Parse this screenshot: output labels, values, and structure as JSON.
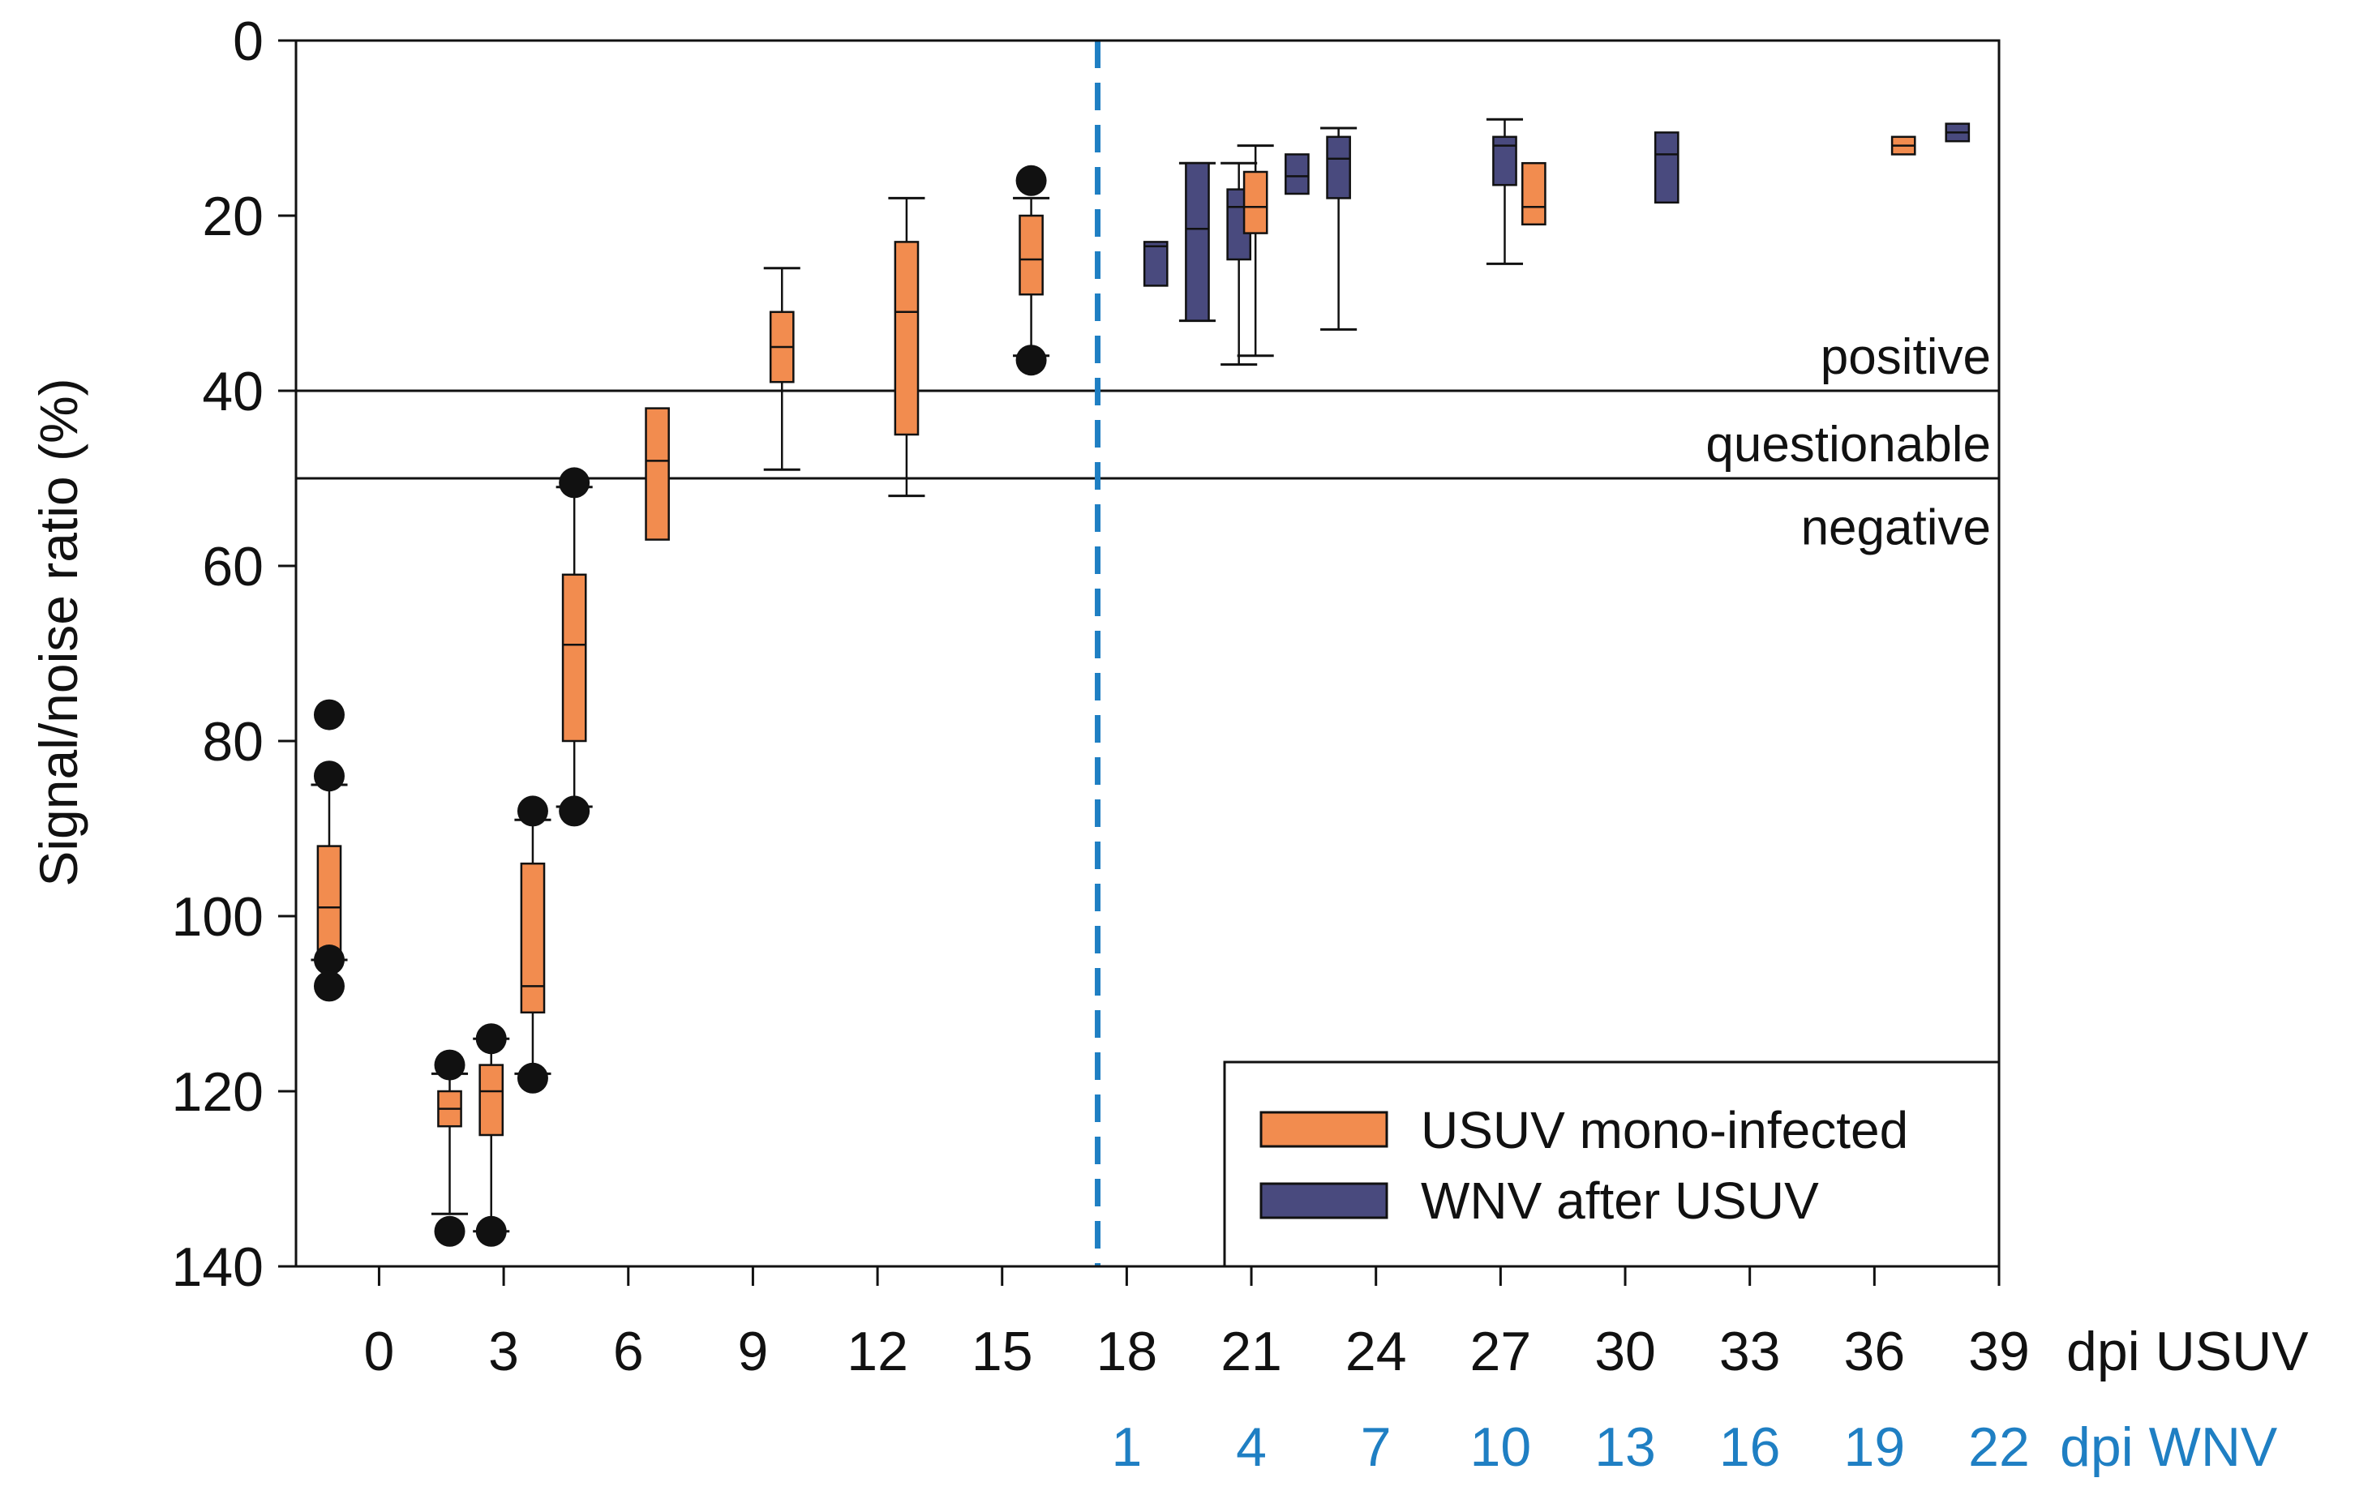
{
  "chart_data": {
    "type": "box",
    "title": "",
    "ylabel": "Signal/noise ratio (%)",
    "ylim": [
      0,
      140
    ],
    "y_inverted": true,
    "y_ticks": [
      0,
      20,
      40,
      60,
      80,
      100,
      120,
      140
    ],
    "xlim": [
      -2,
      39
    ],
    "x_ticks": [
      0,
      3,
      6,
      9,
      12,
      15,
      18,
      21,
      24,
      27,
      30,
      33,
      36,
      39
    ],
    "x_unit_usuv": "dpi USUV",
    "x_ticks_wnv": [
      {
        "usuv": 18,
        "label": "1"
      },
      {
        "usuv": 21,
        "label": "4"
      },
      {
        "usuv": 24,
        "label": "7"
      },
      {
        "usuv": 27,
        "label": "10"
      },
      {
        "usuv": 30,
        "label": "13"
      },
      {
        "usuv": 33,
        "label": "16"
      },
      {
        "usuv": 36,
        "label": "19"
      },
      {
        "usuv": 39,
        "label": "22"
      }
    ],
    "x_unit_wnv": "dpi WNV",
    "reference_lines": [
      40,
      50
    ],
    "regions": [
      {
        "label": "positive",
        "y": 36
      },
      {
        "label": "questionable",
        "y": 46
      },
      {
        "label": "negative",
        "y": 55.5
      }
    ],
    "divider_x": 17.3,
    "colors": {
      "usuv": "#f28c4f",
      "wnv": "#494a7e",
      "divider": "#1f7fc3",
      "outlier": "#111111"
    },
    "legend": {
      "position": "bottom-right",
      "entries": [
        {
          "label": "USUV mono-infected",
          "series": "usuv"
        },
        {
          "label": "WNV after USUV",
          "series": "wnv"
        }
      ]
    },
    "boxes": [
      {
        "series": "usuv",
        "x": -1.2,
        "w": 0.55,
        "wlo": 85,
        "q1": 92,
        "med": 99,
        "q3": 104,
        "whi": 105,
        "outliers": [
          77,
          84,
          105,
          108
        ]
      },
      {
        "series": "usuv",
        "x": 1.7,
        "w": 0.55,
        "wlo": 118,
        "q1": 120,
        "med": 122,
        "q3": 124,
        "whi": 134,
        "outliers": [
          117,
          136
        ]
      },
      {
        "series": "usuv",
        "x": 2.7,
        "w": 0.55,
        "wlo": 114,
        "q1": 117,
        "med": 120,
        "q3": 125,
        "whi": 136,
        "outliers": [
          114,
          136
        ]
      },
      {
        "series": "usuv",
        "x": 3.7,
        "w": 0.55,
        "wlo": 89,
        "q1": 94,
        "med": 108,
        "q3": 111,
        "whi": 118,
        "outliers": [
          88,
          118.5
        ]
      },
      {
        "series": "usuv",
        "x": 4.7,
        "w": 0.55,
        "wlo": 51,
        "q1": 61,
        "med": 69,
        "q3": 80,
        "whi": 87.5,
        "outliers": [
          50.5,
          88
        ]
      },
      {
        "series": "usuv",
        "x": 6.7,
        "w": 0.55,
        "wlo": null,
        "q1": 42,
        "med": 48,
        "q3": 57,
        "whi": null,
        "outliers": []
      },
      {
        "series": "usuv",
        "x": 9.7,
        "w": 0.55,
        "wlo": 26,
        "q1": 31,
        "med": 35,
        "q3": 39,
        "whi": 49,
        "outliers": []
      },
      {
        "series": "usuv",
        "x": 12.7,
        "w": 0.55,
        "wlo": 18,
        "q1": 23,
        "med": 31,
        "q3": 45,
        "whi": 52,
        "outliers": []
      },
      {
        "series": "usuv",
        "x": 15.7,
        "w": 0.55,
        "wlo": 18,
        "q1": 20,
        "med": 25,
        "q3": 29,
        "whi": 36,
        "outliers": [
          16,
          36.5
        ]
      },
      {
        "series": "wnv",
        "x": 18.7,
        "w": 0.55,
        "wlo": null,
        "q1": 23,
        "med": 23.5,
        "q3": 28,
        "whi": null,
        "outliers": []
      },
      {
        "series": "wnv",
        "x": 19.7,
        "w": 0.55,
        "wlo": 14,
        "q1": 14,
        "med": 21.5,
        "q3": 32,
        "whi": 32,
        "outliers": []
      },
      {
        "series": "wnv",
        "x": 20.7,
        "w": 0.55,
        "wlo": 14,
        "q1": 17,
        "med": 19,
        "q3": 25,
        "whi": 37,
        "outliers": []
      },
      {
        "series": "usuv",
        "x": 21.1,
        "w": 0.55,
        "wlo": 12,
        "q1": 15,
        "med": 19,
        "q3": 22,
        "whi": 36,
        "outliers": []
      },
      {
        "series": "wnv",
        "x": 22.1,
        "w": 0.55,
        "wlo": null,
        "q1": 13,
        "med": 15.5,
        "q3": 17.5,
        "whi": null,
        "outliers": []
      },
      {
        "series": "wnv",
        "x": 23.1,
        "w": 0.55,
        "wlo": 10,
        "q1": 11,
        "med": 13.5,
        "q3": 18,
        "whi": 33,
        "outliers": []
      },
      {
        "series": "wnv",
        "x": 27.1,
        "w": 0.55,
        "wlo": 9,
        "q1": 11,
        "med": 12,
        "q3": 16.5,
        "whi": 25.5,
        "outliers": []
      },
      {
        "series": "usuv",
        "x": 27.8,
        "w": 0.55,
        "wlo": null,
        "q1": 14,
        "med": 19,
        "q3": 21,
        "whi": null,
        "outliers": []
      },
      {
        "series": "wnv",
        "x": 31.0,
        "w": 0.55,
        "wlo": null,
        "q1": 10.5,
        "med": 13,
        "q3": 18.5,
        "whi": null,
        "outliers": []
      },
      {
        "series": "usuv",
        "x": 36.7,
        "w": 0.55,
        "wlo": null,
        "q1": 11,
        "med": 12,
        "q3": 13,
        "whi": null,
        "outliers": []
      },
      {
        "series": "wnv",
        "x": 38.0,
        "w": 0.55,
        "wlo": null,
        "q1": 9.5,
        "med": 10.5,
        "q3": 11.5,
        "whi": null,
        "outliers": []
      }
    ]
  }
}
